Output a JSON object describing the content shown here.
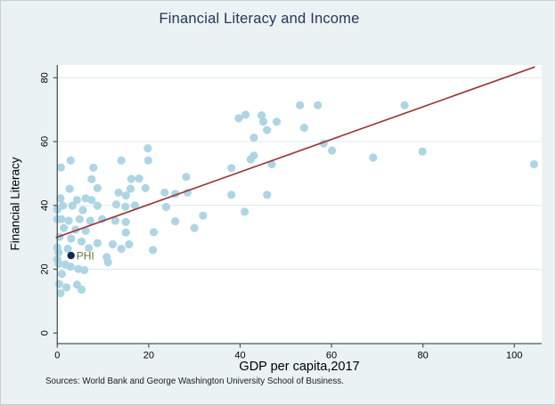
{
  "source_note": "Sources: World Bank and George Washington University School of Business.",
  "colors": {
    "background": "#EAF2F3",
    "plot_background": "#FFFFFF",
    "gridline": "#DCE8EE",
    "axis": "#4D5456",
    "tick_text": "#000000",
    "marker": "#AFD5E4",
    "fit_line": "#9A3B3B",
    "highlight_marker": "#15274D",
    "highlight_label": "#6E7030",
    "title_text": "#26365A"
  },
  "chart_data": {
    "type": "scatter",
    "title": "Financial Literacy and Income",
    "xlabel": "GDP per capita,2017",
    "ylabel": "Financial Literacy",
    "xlim": [
      0,
      106
    ],
    "ylim": [
      -3.3,
      84
    ],
    "x_ticks": [
      0,
      20,
      40,
      60,
      80,
      100
    ],
    "y_ticks": [
      0,
      20,
      40,
      60,
      80
    ],
    "grid": "horizontal-only",
    "legend": "none",
    "points": [
      [
        0.8,
        51.9
      ],
      [
        2.9,
        54.1
      ],
      [
        7.9,
        51.8
      ],
      [
        14,
        54.1
      ],
      [
        19.8,
        57.9
      ],
      [
        19.9,
        54.1
      ],
      [
        16.2,
        48.3
      ],
      [
        17.9,
        48.4
      ],
      [
        7.5,
        48.2
      ],
      [
        28.2,
        48.9
      ],
      [
        2.7,
        45.2
      ],
      [
        8.8,
        45.4
      ],
      [
        16,
        45.2
      ],
      [
        19.3,
        45.4
      ],
      [
        13.4,
        44
      ],
      [
        23.5,
        44
      ],
      [
        25.8,
        43.6
      ],
      [
        28.5,
        44
      ],
      [
        15,
        43.1
      ],
      [
        6.2,
        42.2
      ],
      [
        0.7,
        42.2
      ],
      [
        4.3,
        41.7
      ],
      [
        7.5,
        41.7
      ],
      [
        1.2,
        39.9
      ],
      [
        3.3,
        39.9
      ],
      [
        5.6,
        38.5
      ],
      [
        8.8,
        39.9
      ],
      [
        12.9,
        40.3
      ],
      [
        14.9,
        39.6
      ],
      [
        17,
        40
      ],
      [
        23.8,
        39.5
      ],
      [
        0,
        38.7
      ],
      [
        0,
        35.7
      ],
      [
        0.9,
        35.7
      ],
      [
        2.5,
        35.2
      ],
      [
        4.9,
        35.7
      ],
      [
        7.2,
        35.2
      ],
      [
        9.8,
        35.7
      ],
      [
        12.7,
        35.2
      ],
      [
        15,
        34.8
      ],
      [
        25.8,
        35
      ],
      [
        1.4,
        32.9
      ],
      [
        4,
        32.4
      ],
      [
        6.2,
        32
      ],
      [
        15,
        31.5
      ],
      [
        21.1,
        31.6
      ],
      [
        30,
        32.9
      ],
      [
        31.9,
        36.8
      ],
      [
        0.5,
        30.1
      ],
      [
        3,
        29.6
      ],
      [
        5.3,
        28.7
      ],
      [
        8.8,
        28.2
      ],
      [
        12.1,
        27.8
      ],
      [
        15.7,
        27.8
      ],
      [
        0,
        26.8
      ],
      [
        2.3,
        26.4
      ],
      [
        6.9,
        26.6
      ],
      [
        14,
        26.4
      ],
      [
        20.9,
        26
      ],
      [
        0.3,
        25.3
      ],
      [
        10.8,
        23.8
      ],
      [
        0,
        23.1
      ],
      [
        0.3,
        21.7
      ],
      [
        1.7,
        21.5
      ],
      [
        2.9,
        20.8
      ],
      [
        4.6,
        20.1
      ],
      [
        5.9,
        19.7
      ],
      [
        11.1,
        22.2
      ],
      [
        1,
        18.5
      ],
      [
        0.4,
        15.4
      ],
      [
        2,
        14.3
      ],
      [
        4.3,
        15.2
      ],
      [
        5.3,
        13.6
      ],
      [
        0.7,
        12.5
      ],
      [
        38.1,
        51.7
      ],
      [
        38.1,
        43.3
      ],
      [
        41,
        38
      ],
      [
        42.3,
        54.4
      ],
      [
        43,
        61.2
      ],
      [
        43,
        55.6
      ],
      [
        45.9,
        43.3
      ],
      [
        45.9,
        63.6
      ],
      [
        44.7,
        68.2
      ],
      [
        45.1,
        66.2
      ],
      [
        39.7,
        67.3
      ],
      [
        41.2,
        68.4
      ],
      [
        46.9,
        52.9
      ],
      [
        48,
        66.2
      ],
      [
        53.1,
        71.4
      ],
      [
        54,
        64.3
      ],
      [
        57,
        71.4
      ],
      [
        58.3,
        59.4
      ],
      [
        60.1,
        57.2
      ],
      [
        69.1,
        55
      ],
      [
        76,
        71.4
      ],
      [
        79.9,
        56.9
      ],
      [
        104.3,
        52.9
      ]
    ],
    "highlight_point": {
      "label": "PHI",
      "x": 3,
      "y": 24.3
    },
    "fit_line": {
      "x1": -0.3,
      "y1": 29.9,
      "x2": 104.5,
      "y2": 83.4
    }
  }
}
